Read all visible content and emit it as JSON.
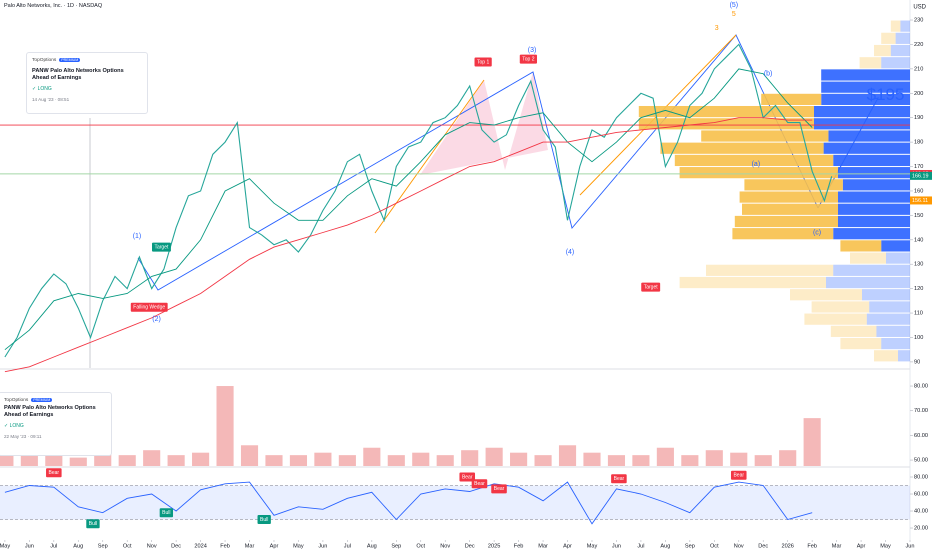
{
  "header": {
    "title": "Palo Alto Networks, Inc. · 1D · NASDAQ",
    "currency": "USD"
  },
  "news": [
    {
      "source": "TopOptions",
      "badge": "PREMIUM",
      "title": "PANW Palo Alto Networks Options Ahead of Earnings",
      "side": "✓ LONG",
      "date": "14 Aug '23 · 08:51"
    },
    {
      "source": "TopOptions",
      "badge": "PREMIUM",
      "title": "PANW Palo Alto Networks Options Ahead of Earnings",
      "side": "✓ LONG",
      "date": "22 May '23 · 09:11"
    }
  ],
  "chart_data": [
    {
      "type": "line",
      "xlim": [
        -0.2,
        37
      ],
      "ylim": [
        87.5,
        238.2
      ],
      "yticks": [
        90,
        100,
        110,
        120,
        130,
        140,
        150,
        160,
        170,
        180,
        190,
        200,
        210,
        220,
        230
      ],
      "xticks": [
        {
          "value": 0,
          "label": "May"
        },
        {
          "value": 1,
          "label": "Jun"
        },
        {
          "value": 2,
          "label": "Jul"
        },
        {
          "value": 3,
          "label": "Aug"
        },
        {
          "value": 4,
          "label": "Sep"
        },
        {
          "value": 5,
          "label": "Oct"
        },
        {
          "value": 6,
          "label": "Nov"
        },
        {
          "value": 7,
          "label": "Dec"
        },
        {
          "value": 8,
          "label": "2024"
        },
        {
          "value": 9,
          "label": "Feb"
        },
        {
          "value": 10,
          "label": "Mar"
        },
        {
          "value": 11,
          "label": "Apr"
        },
        {
          "value": 12,
          "label": "May"
        },
        {
          "value": 13,
          "label": "Jun"
        },
        {
          "value": 14,
          "label": "Jul"
        },
        {
          "value": 15,
          "label": "Aug"
        },
        {
          "value": 16,
          "label": "Sep"
        },
        {
          "value": 17,
          "label": "Oct"
        },
        {
          "value": 18,
          "label": "Nov"
        },
        {
          "value": 19,
          "label": "Dec"
        },
        {
          "value": 20,
          "label": "2025"
        },
        {
          "value": 21,
          "label": "Feb"
        },
        {
          "value": 22,
          "label": "Mar"
        },
        {
          "value": 23,
          "label": "Apr"
        },
        {
          "value": 24,
          "label": "May"
        },
        {
          "value": 25,
          "label": "Jun"
        },
        {
          "value": 26,
          "label": "Jul"
        },
        {
          "value": 27,
          "label": "Aug"
        },
        {
          "value": 28,
          "label": "Sep"
        },
        {
          "value": 29,
          "label": "Oct"
        },
        {
          "value": 30,
          "label": "Nov"
        },
        {
          "value": 31,
          "label": "Dec"
        },
        {
          "value": 32,
          "label": "2026"
        },
        {
          "value": 33,
          "label": "Feb"
        },
        {
          "value": 34,
          "label": "Mar"
        },
        {
          "value": 35,
          "label": "Apr"
        },
        {
          "value": 36,
          "label": "May"
        },
        {
          "value": 37,
          "label": "Jun"
        }
      ],
      "series": [
        {
          "color": "#26a69a",
          "width": 1.1,
          "x": [
            0,
            0.5,
            1,
            1.5,
            2,
            2.5,
            3,
            3.5,
            4,
            4.5,
            5,
            5.5,
            6,
            6.5,
            7,
            7.5,
            8,
            8.5,
            9,
            9.5,
            10,
            10.5,
            11,
            11.5,
            12,
            12.5,
            13,
            13.5,
            14,
            14.5,
            15,
            15.5,
            16,
            16.5,
            17,
            17.5,
            18,
            18.5,
            19,
            19.5,
            20,
            20.5,
            21,
            21.5,
            22,
            22.5,
            23,
            23.5,
            24,
            24.5,
            25,
            25.5,
            26,
            26.5,
            27,
            27.5,
            28,
            28.5,
            29,
            29.5,
            30,
            30.5,
            31,
            31.5,
            32,
            32.5,
            33,
            33.5,
            33.8
          ],
          "values": [
            92,
            100,
            112,
            120,
            126,
            122,
            112,
            100,
            115,
            125,
            120,
            133,
            120,
            128,
            145,
            158,
            160,
            175,
            180,
            188,
            145,
            142,
            138,
            140,
            135,
            142,
            152,
            160,
            172,
            175,
            160,
            148,
            170,
            178,
            180,
            188,
            190,
            195,
            203,
            185,
            180,
            183,
            195,
            205,
            185,
            178,
            148,
            170,
            185,
            182,
            190,
            195,
            200,
            198,
            170,
            180,
            195,
            200,
            210,
            215,
            220,
            210,
            190,
            195,
            188,
            188,
            168,
            156,
            166
          ]
        },
        {
          "color": "#089981",
          "width": 0.9,
          "x": [
            0,
            1,
            2,
            3,
            4,
            5,
            6,
            7,
            8,
            9,
            10,
            11,
            12,
            13,
            14,
            15,
            16,
            17,
            18,
            19,
            20,
            21,
            22,
            23,
            24,
            25,
            26,
            27,
            28,
            29,
            30,
            31,
            32,
            33
          ],
          "values": [
            95,
            103,
            115,
            118,
            116,
            118,
            125,
            128,
            140,
            160,
            165,
            155,
            148,
            148,
            158,
            165,
            162,
            172,
            183,
            188,
            187,
            190,
            192,
            180,
            172,
            180,
            190,
            193,
            190,
            198,
            210,
            208,
            196,
            186
          ]
        },
        {
          "color": "#f23645",
          "width": 0.9,
          "x": [
            0,
            1,
            2,
            3,
            4,
            5,
            6,
            7,
            8,
            9,
            10,
            11,
            12,
            13,
            14,
            15,
            16,
            17,
            18,
            19,
            20,
            21,
            22,
            23,
            24,
            25,
            26,
            27,
            28,
            29,
            30,
            31,
            32,
            33
          ],
          "values": [
            86,
            88,
            92,
            96,
            100,
            104,
            108,
            113,
            118,
            125,
            132,
            137,
            140,
            143,
            146,
            150,
            155,
            160,
            165,
            170,
            172,
            176,
            180,
            180,
            182,
            184,
            185,
            186,
            187,
            188,
            190,
            190,
            189,
            189
          ]
        }
      ],
      "levels": [
        {
          "value": 187,
          "color": "#f23645"
        },
        {
          "value": 167,
          "color": "#a5d6a7"
        }
      ],
      "profile": {
        "levels": [
          92.5,
          97.5,
          102.5,
          107.5,
          112.5,
          117.5,
          122.5,
          127.5,
          132.5,
          137.5,
          142.5,
          147.5,
          152.5,
          157.5,
          162.5,
          167.5,
          172.5,
          177.5,
          182.5,
          187.5,
          192.5,
          197.5,
          202.5,
          207.5,
          212.5,
          217.5,
          222.5,
          227.5
        ],
        "up": [
          5,
          12,
          14,
          18,
          17,
          20,
          35,
          32,
          10,
          12,
          32,
          30,
          30,
          30,
          28,
          30,
          32,
          36,
          34,
          40,
          40,
          37,
          37,
          37,
          12,
          8,
          6,
          4
        ],
        "down": [
          10,
          17,
          19,
          26,
          24,
          30,
          61,
          53,
          15,
          17,
          42,
          43,
          40,
          41,
          41,
          66,
          66,
          68,
          53,
          73,
          73,
          25,
          0,
          0,
          9,
          7,
          6,
          4
        ],
        "value_area": [
          137.5,
          207.5
        ],
        "colors": [
          "#2962ff",
          "#f7c04a"
        ]
      },
      "annotations": [
        {
          "text": "(1)",
          "x": 5.4,
          "y": 141.5,
          "style": "text",
          "color": "#2962ff"
        },
        {
          "text": "Target",
          "x": 6.4,
          "y": 137,
          "style": "box",
          "color": "#089981"
        },
        {
          "text": "Falling Wedge",
          "x": 5.9,
          "y": 112.4,
          "style": "box",
          "color": "#f23645"
        },
        {
          "text": "(2)",
          "x": 6.2,
          "y": 107.5,
          "style": "text",
          "color": "#2962ff"
        },
        {
          "text": "Top 1",
          "x": 19.55,
          "y": 212.8,
          "style": "box",
          "color": "#f23645"
        },
        {
          "text": "(3)",
          "x": 21.55,
          "y": 217.7,
          "style": "text",
          "color": "#2962ff"
        },
        {
          "text": "Top 2",
          "x": 21.4,
          "y": 214,
          "style": "box",
          "color": "#f23645"
        },
        {
          "text": "(4)",
          "x": 23.1,
          "y": 135,
          "style": "text",
          "color": "#2962ff"
        },
        {
          "text": "Target",
          "x": 26.4,
          "y": 120.6,
          "style": "box",
          "color": "#f23645"
        },
        {
          "text": "3",
          "x": 29.1,
          "y": 226.7,
          "style": "text",
          "color": "#ff9800"
        },
        {
          "text": "(5)",
          "x": 29.8,
          "y": 236,
          "style": "text",
          "color": "#2962ff"
        },
        {
          "text": "5",
          "x": 29.8,
          "y": 232.5,
          "style": "text",
          "color": "#ff9800"
        },
        {
          "text": "(b)",
          "x": 31.2,
          "y": 208,
          "style": "text",
          "color": "#2962ff"
        },
        {
          "text": "(a)",
          "x": 30.7,
          "y": 171,
          "style": "text",
          "color": "#2962ff"
        },
        {
          "text": "(c)",
          "x": 33.2,
          "y": 143,
          "style": "text",
          "color": "#2962ff"
        },
        {
          "text": "$195",
          "x": 36.0,
          "y": 199,
          "style": "large",
          "color": "#2962ff"
        }
      ],
      "price_tags": [
        {
          "value": 166.95,
          "color": "#f23645"
        },
        {
          "value": 166.19,
          "color": "#089981"
        },
        {
          "value": 156.11,
          "color": "#ff9800"
        }
      ]
    },
    {
      "type": "bar",
      "ylim": [
        47.6,
        86.5
      ],
      "yticks": [
        {
          "value": 50,
          "label": "50.00"
        },
        {
          "value": 60,
          "label": "60.00"
        },
        {
          "value": 70,
          "label": "70.00"
        },
        {
          "value": 80,
          "label": "80.00"
        }
      ],
      "x": [
        0,
        1,
        2,
        3,
        4,
        5,
        6,
        7,
        8,
        9,
        10,
        11,
        12,
        13,
        14,
        15,
        16,
        17,
        18,
        19,
        20,
        21,
        22,
        23,
        24,
        25,
        26,
        27,
        28,
        29,
        30,
        31,
        32,
        33
      ],
      "values": [
        53,
        52,
        52,
        51,
        53,
        52,
        54,
        52,
        53,
        80,
        56,
        52,
        52,
        53,
        52,
        55,
        52,
        53,
        52,
        54,
        55,
        53,
        52,
        56,
        53,
        52,
        52,
        55,
        52,
        54,
        53,
        52,
        54,
        67
      ],
      "color": "#ef9a9a"
    },
    {
      "type": "line",
      "ylim": [
        5.9,
        90.6
      ],
      "yticks": [
        {
          "value": 20,
          "label": "20.00"
        },
        {
          "value": 40,
          "label": "40.00"
        },
        {
          "value": 60,
          "label": "60.00"
        },
        {
          "value": 80,
          "label": "80.00"
        }
      ],
      "band": [
        30,
        70
      ],
      "series": [
        {
          "color": "#2962ff",
          "width": 0.9,
          "x": [
            0,
            1,
            2,
            3,
            4,
            5,
            6,
            7,
            8,
            9,
            10,
            11,
            12,
            13,
            14,
            15,
            16,
            17,
            18,
            19,
            20,
            21,
            22,
            23,
            24,
            25,
            26,
            27,
            28,
            29,
            30,
            31,
            32,
            33
          ],
          "values": [
            62,
            70,
            68,
            45,
            38,
            55,
            60,
            40,
            65,
            72,
            74,
            35,
            45,
            42,
            55,
            62,
            30,
            60,
            66,
            63,
            72,
            68,
            52,
            74,
            25,
            66,
            60,
            50,
            38,
            68,
            74,
            70,
            30,
            38
          ]
        }
      ],
      "annotations": [
        {
          "text": "Bear",
          "x": 2.0,
          "y": 85,
          "style": "box",
          "color": "#f23645"
        },
        {
          "text": "Bull",
          "x": 3.6,
          "y": 25,
          "style": "box",
          "color": "#089981"
        },
        {
          "text": "Bull",
          "x": 6.6,
          "y": 38,
          "style": "box",
          "color": "#089981"
        },
        {
          "text": "Bull",
          "x": 10.6,
          "y": 30,
          "style": "box",
          "color": "#089981"
        },
        {
          "text": "Bear",
          "x": 18.9,
          "y": 80,
          "style": "box",
          "color": "#f23645"
        },
        {
          "text": "Bear",
          "x": 19.4,
          "y": 72,
          "style": "box",
          "color": "#f23645"
        },
        {
          "text": "Bear",
          "x": 20.2,
          "y": 66,
          "style": "box",
          "color": "#f23645"
        },
        {
          "text": "Bear",
          "x": 25.1,
          "y": 78,
          "style": "box",
          "color": "#f23645"
        },
        {
          "text": "Bear",
          "x": 30.0,
          "y": 82,
          "style": "box",
          "color": "#f23645"
        }
      ]
    }
  ]
}
